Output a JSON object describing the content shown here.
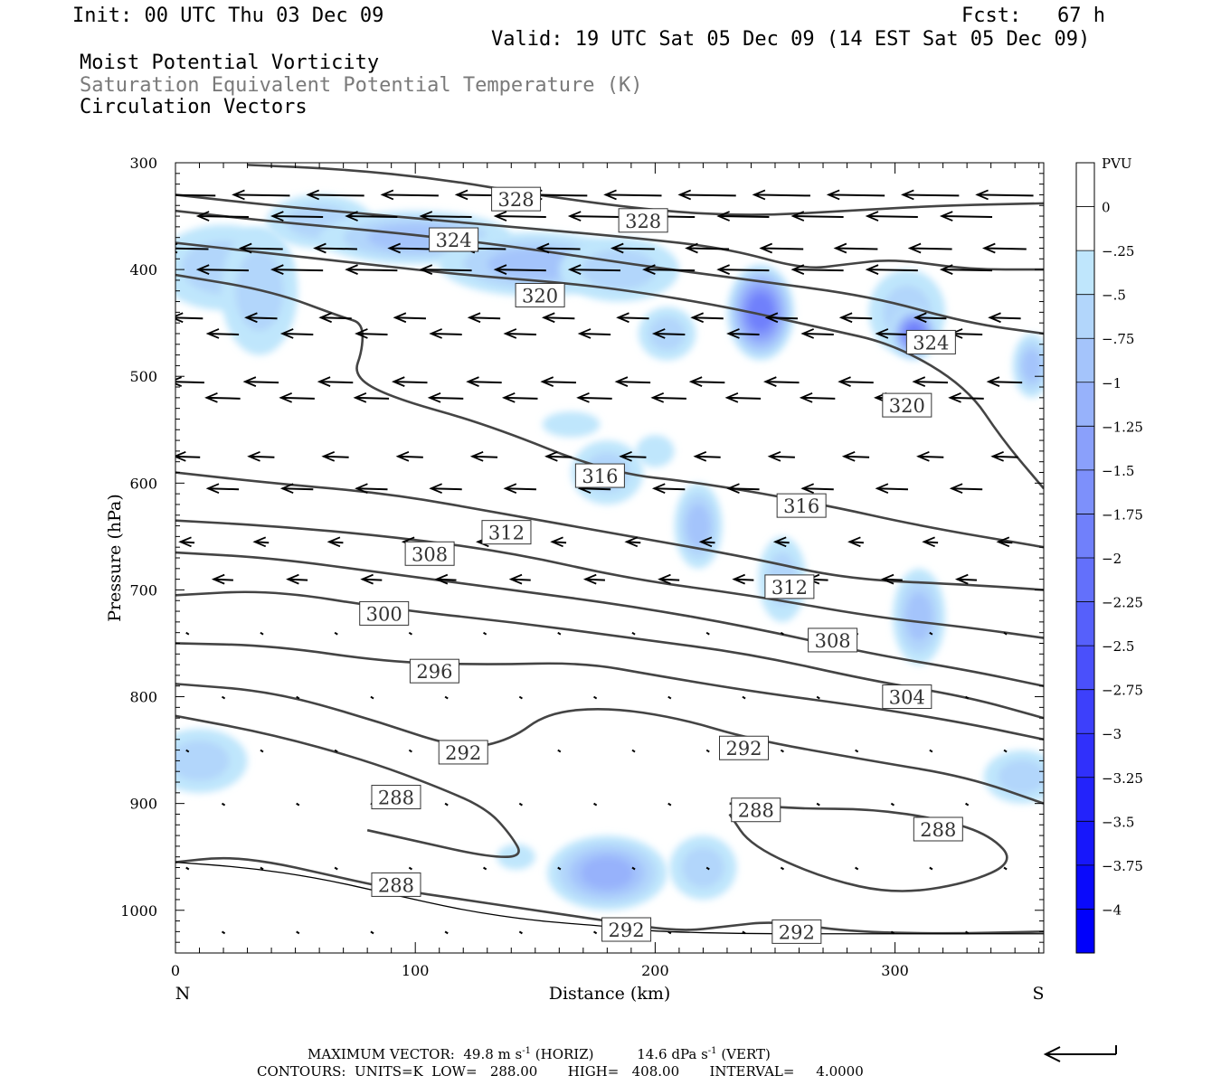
{
  "header": {
    "init": "Init: 00 UTC Thu 03 Dec 09",
    "fcst": "Fcst:   67 h",
    "valid": "Valid: 19 UTC Sat 05 Dec 09 (14 EST Sat 05 Dec 09)",
    "field1": "Moist Potential Vorticity",
    "field2": "Saturation Equivalent Potential Temperature (K)",
    "field3": "Circulation Vectors"
  },
  "footer": {
    "max_vector": "MAXIMUM VECTOR:  49.8 m s",
    "horiz": "(HORIZ)",
    "vert_val": "14.6 dPa s",
    "vert": "(VERT)",
    "exp": "-1",
    "contours": "CONTOURS:  UNITS=K  LOW=   288.00       HIGH=   408.00       INTERVAL=     4.0000"
  },
  "colorbar": {
    "title": "PVU",
    "labels": [
      "0",
      "-.25",
      "-.5",
      "-.75",
      "-1",
      "-1.25",
      "-1.5",
      "-1.75",
      "-2",
      "-2.25",
      "-2.5",
      "-2.75",
      "-3",
      "-3.25",
      "-3.5",
      "-3.75",
      "-4"
    ],
    "colors": [
      "#ffffff",
      "#ffffff",
      "#bfe6fc",
      "#b2d6fb",
      "#a4c4fb",
      "#97b2fb",
      "#8aa0fb",
      "#7d90fb",
      "#7080fb",
      "#6370fb",
      "#5660fb",
      "#4a50fb",
      "#3d40fb",
      "#3030fb",
      "#2323fb",
      "#1717fb",
      "#0a0afb",
      "#0000fb"
    ]
  },
  "chart_data": {
    "type": "contour",
    "xlabel": "Distance (km)",
    "ylabel": "Pressure (hPa)",
    "xlim": [
      0,
      362
    ],
    "ylim": [
      1040,
      300
    ],
    "x_ticks": [
      0,
      100,
      200,
      300
    ],
    "y_ticks": [
      300,
      400,
      500,
      600,
      700,
      800,
      900,
      1000
    ],
    "end_labels": {
      "left": "N",
      "right": "S"
    },
    "contour_labels": [
      {
        "value": "328",
        "x": 142,
        "p": 334
      },
      {
        "value": "328",
        "x": 195,
        "p": 354
      },
      {
        "value": "324",
        "x": 116,
        "p": 372
      },
      {
        "value": "324",
        "x": 315,
        "p": 468
      },
      {
        "value": "320",
        "x": 152,
        "p": 424
      },
      {
        "value": "320",
        "x": 305,
        "p": 527
      },
      {
        "value": "316",
        "x": 177,
        "p": 593
      },
      {
        "value": "316",
        "x": 261,
        "p": 621
      },
      {
        "value": "312",
        "x": 138,
        "p": 646
      },
      {
        "value": "312",
        "x": 256,
        "p": 697
      },
      {
        "value": "308",
        "x": 106,
        "p": 666
      },
      {
        "value": "308",
        "x": 274,
        "p": 747
      },
      {
        "value": "300",
        "x": 87,
        "p": 722
      },
      {
        "value": "304",
        "x": 305,
        "p": 800
      },
      {
        "value": "296",
        "x": 108,
        "p": 776
      },
      {
        "value": "292",
        "x": 120,
        "p": 852
      },
      {
        "value": "292",
        "x": 237,
        "p": 848
      },
      {
        "value": "288",
        "x": 92,
        "p": 894
      },
      {
        "value": "288",
        "x": 242,
        "p": 906
      },
      {
        "value": "288",
        "x": 318,
        "p": 924
      },
      {
        "value": "288",
        "x": 92,
        "p": 976
      },
      {
        "value": "292",
        "x": 188,
        "p": 1018
      },
      {
        "value": "292",
        "x": 259,
        "p": 1020
      }
    ],
    "contours": [
      {
        "v": 328,
        "pts": [
          [
            30,
            302
          ],
          [
            70,
            306
          ],
          [
            110,
            315
          ],
          [
            150,
            330
          ],
          [
            200,
            345
          ],
          [
            240,
            350
          ],
          [
            280,
            345
          ],
          [
            320,
            340
          ],
          [
            362,
            338
          ]
        ]
      },
      {
        "v": 328,
        "pts": [
          [
            0,
            330
          ],
          [
            40,
            340
          ],
          [
            90,
            350
          ],
          [
            140,
            360
          ],
          [
            190,
            370
          ],
          [
            230,
            380
          ],
          [
            262,
            400
          ],
          [
            280,
            395
          ],
          [
            300,
            390
          ],
          [
            330,
            400
          ],
          [
            362,
            400
          ]
        ]
      },
      {
        "v": 324,
        "pts": [
          [
            0,
            345
          ],
          [
            40,
            355
          ],
          [
            90,
            365
          ],
          [
            140,
            378
          ],
          [
            190,
            395
          ],
          [
            240,
            410
          ],
          [
            290,
            425
          ],
          [
            330,
            450
          ],
          [
            362,
            460
          ]
        ]
      },
      {
        "v": 320,
        "pts": [
          [
            0,
            375
          ],
          [
            40,
            385
          ],
          [
            80,
            395
          ],
          [
            120,
            405
          ],
          [
            160,
            412
          ],
          [
            190,
            420
          ],
          [
            230,
            435
          ],
          [
            270,
            455
          ],
          [
            300,
            470
          ],
          [
            330,
            510
          ],
          [
            345,
            560
          ],
          [
            362,
            605
          ]
        ]
      },
      {
        "v": 316,
        "pts": [
          [
            0,
            405
          ],
          [
            40,
            420
          ],
          [
            70,
            445
          ],
          [
            78,
            450
          ],
          [
            78,
            475
          ],
          [
            74,
            500
          ],
          [
            90,
            520
          ],
          [
            130,
            545
          ],
          [
            180,
            590
          ],
          [
            220,
            600
          ],
          [
            270,
            620
          ],
          [
            310,
            640
          ],
          [
            362,
            660
          ]
        ]
      },
      {
        "v": 312,
        "pts": [
          [
            0,
            590
          ],
          [
            40,
            600
          ],
          [
            90,
            610
          ],
          [
            140,
            630
          ],
          [
            190,
            650
          ],
          [
            240,
            670
          ],
          [
            280,
            690
          ],
          [
            330,
            695
          ],
          [
            362,
            700
          ]
        ]
      },
      {
        "v": 308,
        "pts": [
          [
            0,
            635
          ],
          [
            40,
            640
          ],
          [
            90,
            650
          ],
          [
            140,
            665
          ],
          [
            190,
            690
          ],
          [
            240,
            705
          ],
          [
            290,
            725
          ],
          [
            330,
            735
          ],
          [
            362,
            745
          ]
        ]
      },
      {
        "v": 304,
        "pts": [
          [
            0,
            665
          ],
          [
            40,
            670
          ],
          [
            90,
            685
          ],
          [
            140,
            700
          ],
          [
            190,
            715
          ],
          [
            240,
            735
          ],
          [
            290,
            760
          ],
          [
            330,
            775
          ],
          [
            362,
            790
          ]
        ]
      },
      {
        "v": 300,
        "pts": [
          [
            0,
            705
          ],
          [
            40,
            700
          ],
          [
            90,
            718
          ],
          [
            140,
            730
          ],
          [
            190,
            745
          ],
          [
            240,
            760
          ],
          [
            290,
            785
          ],
          [
            330,
            800
          ],
          [
            362,
            820
          ]
        ]
      },
      {
        "v": 296,
        "pts": [
          [
            0,
            750
          ],
          [
            40,
            752
          ],
          [
            90,
            768
          ],
          [
            130,
            770
          ],
          [
            170,
            768
          ],
          [
            200,
            780
          ],
          [
            240,
            795
          ],
          [
            290,
            810
          ],
          [
            330,
            825
          ],
          [
            362,
            840
          ]
        ]
      },
      {
        "v": 292,
        "pts": [
          [
            0,
            788
          ],
          [
            40,
            795
          ],
          [
            80,
            820
          ],
          [
            120,
            850
          ],
          [
            140,
            840
          ],
          [
            155,
            815
          ],
          [
            180,
            810
          ],
          [
            210,
            820
          ],
          [
            240,
            840
          ],
          [
            290,
            860
          ],
          [
            330,
            875
          ],
          [
            362,
            900
          ]
        ]
      },
      {
        "v": 288,
        "pts": [
          [
            0,
            818
          ],
          [
            40,
            835
          ],
          [
            80,
            860
          ],
          [
            110,
            885
          ],
          [
            130,
            905
          ],
          [
            140,
            930
          ],
          [
            145,
            950
          ],
          [
            130,
            950
          ],
          [
            100,
            935
          ],
          [
            80,
            925
          ]
        ]
      },
      {
        "v": 288,
        "pts": [
          [
            231,
            910
          ],
          [
            240,
            940
          ],
          [
            270,
            970
          ],
          [
            300,
            985
          ],
          [
            330,
            975
          ],
          [
            350,
            955
          ],
          [
            340,
            930
          ],
          [
            320,
            915
          ],
          [
            290,
            905
          ],
          [
            260,
            905
          ],
          [
            231,
            900
          ]
        ]
      },
      {
        "v": 288,
        "pts": [
          [
            0,
            955
          ],
          [
            20,
            950
          ],
          [
            40,
            955
          ],
          [
            60,
            965
          ],
          [
            90,
            980
          ],
          [
            120,
            990
          ],
          [
            150,
            1000
          ],
          [
            180,
            1010
          ],
          [
            210,
            1020
          ],
          [
            230,
            1015
          ],
          [
            250,
            1010
          ],
          [
            280,
            1020
          ],
          [
            320,
            1022
          ],
          [
            362,
            1020
          ]
        ]
      },
      {
        "v": 292,
        "pts": [
          [
            0,
            955
          ],
          [
            30,
            960
          ],
          [
            60,
            970
          ],
          [
            90,
            985
          ],
          [
            120,
            1000
          ],
          [
            150,
            1010
          ],
          [
            180,
            1015
          ],
          [
            200,
            1020
          ],
          [
            240,
            1022
          ],
          [
            290,
            1022
          ],
          [
            362,
            1022
          ]
        ]
      }
    ],
    "pv_blobs": [
      {
        "x": 20,
        "p": 398,
        "rx": 28,
        "rp": 40,
        "level": 3
      },
      {
        "x": 35,
        "p": 420,
        "rx": 16,
        "rp": 60,
        "level": 3
      },
      {
        "x": 60,
        "p": 355,
        "rx": 22,
        "rp": 25,
        "level": 3
      },
      {
        "x": 100,
        "p": 370,
        "rx": 40,
        "rp": 25,
        "level": 4
      },
      {
        "x": 150,
        "p": 395,
        "rx": 40,
        "rp": 30,
        "level": 4
      },
      {
        "x": 185,
        "p": 400,
        "rx": 25,
        "rp": 30,
        "level": 3
      },
      {
        "x": 244,
        "p": 440,
        "rx": 14,
        "rp": 45,
        "level": 8
      },
      {
        "x": 305,
        "p": 440,
        "rx": 16,
        "rp": 40,
        "level": 3
      },
      {
        "x": 308,
        "p": 460,
        "rx": 10,
        "rp": 25,
        "level": 8
      },
      {
        "x": 357,
        "p": 490,
        "rx": 8,
        "rp": 30,
        "level": 4
      },
      {
        "x": 180,
        "p": 590,
        "rx": 15,
        "rp": 30,
        "level": 3
      },
      {
        "x": 165,
        "p": 545,
        "rx": 12,
        "rp": 12,
        "level": 2
      },
      {
        "x": 218,
        "p": 640,
        "rx": 10,
        "rp": 40,
        "level": 4
      },
      {
        "x": 253,
        "p": 690,
        "rx": 10,
        "rp": 40,
        "level": 3
      },
      {
        "x": 310,
        "p": 725,
        "rx": 11,
        "rp": 45,
        "level": 4
      },
      {
        "x": 10,
        "p": 860,
        "rx": 20,
        "rp": 30,
        "level": 3
      },
      {
        "x": 353,
        "p": 875,
        "rx": 16,
        "rp": 25,
        "level": 3
      },
      {
        "x": 180,
        "p": 965,
        "rx": 25,
        "rp": 35,
        "level": 5
      },
      {
        "x": 220,
        "p": 960,
        "rx": 14,
        "rp": 30,
        "level": 3
      },
      {
        "x": 142,
        "p": 950,
        "rx": 8,
        "rp": 12,
        "level": 2
      },
      {
        "x": 200,
        "p": 570,
        "rx": 8,
        "rp": 15,
        "level": 2
      },
      {
        "x": 205,
        "p": 460,
        "rx": 12,
        "rp": 25,
        "level": 3
      }
    ],
    "vector_rows": [
      {
        "p": 330,
        "len": 1.0
      },
      {
        "p": 350,
        "len": 0.9
      },
      {
        "p": 380,
        "len": 0.75
      },
      {
        "p": 400,
        "len": 0.9
      },
      {
        "p": 445,
        "len": 0.55
      },
      {
        "p": 460,
        "len": 0.55
      },
      {
        "p": 505,
        "len": 0.6
      },
      {
        "p": 520,
        "len": 0.6
      },
      {
        "p": 575,
        "len": 0.45
      },
      {
        "p": 605,
        "len": 0.55
      },
      {
        "p": 655,
        "len": 0.25
      },
      {
        "p": 690,
        "len": 0.35
      },
      {
        "p": 740,
        "len": 0.05
      },
      {
        "p": 800,
        "len": 0.05
      },
      {
        "p": 850,
        "len": 0.04
      },
      {
        "p": 900,
        "len": 0.05
      },
      {
        "p": 960,
        "len": 0.05
      },
      {
        "p": 1020,
        "len": 0.05
      }
    ]
  }
}
